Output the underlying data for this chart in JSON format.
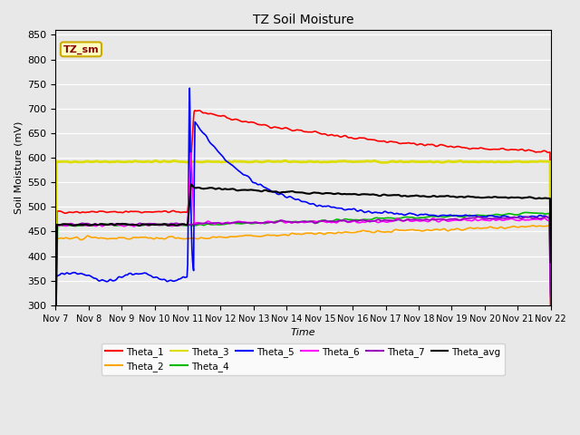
{
  "title": "TZ Soil Moisture",
  "xlabel": "Time",
  "ylabel": "Soil Moisture (mV)",
  "ylim": [
    300,
    860
  ],
  "yticks": [
    300,
    350,
    400,
    450,
    500,
    550,
    600,
    650,
    700,
    750,
    800,
    850
  ],
  "x_tick_labels": [
    "Nov 7",
    "Nov 8",
    "Nov 9",
    "Nov 10",
    "Nov 11",
    "Nov 12",
    "Nov 13",
    "Nov 14",
    "Nov 15",
    "Nov 16",
    "Nov 17",
    "Nov 18",
    "Nov 19",
    "Nov 20",
    "Nov 21",
    "Nov 22"
  ],
  "annotation_text": "TZ_sm",
  "annotation_color": "#8B0000",
  "annotation_bg": "#FFFFC0",
  "annotation_border": "#CCAA00",
  "plot_bg": "#E8E8E8",
  "grid_color": "#FFFFFF",
  "series": {
    "Theta_1": {
      "color": "#FF0000",
      "linewidth": 1.2
    },
    "Theta_2": {
      "color": "#FFA500",
      "linewidth": 1.2
    },
    "Theta_3": {
      "color": "#DDDD00",
      "linewidth": 2.0
    },
    "Theta_4": {
      "color": "#00BB00",
      "linewidth": 1.2
    },
    "Theta_5": {
      "color": "#0000FF",
      "linewidth": 1.2
    },
    "Theta_6": {
      "color": "#FF00FF",
      "linewidth": 1.2
    },
    "Theta_7": {
      "color": "#9900BB",
      "linewidth": 1.2
    },
    "Theta_avg": {
      "color": "#000000",
      "linewidth": 1.5
    }
  },
  "legend_order": [
    "Theta_1",
    "Theta_2",
    "Theta_3",
    "Theta_4",
    "Theta_5",
    "Theta_6",
    "Theta_7",
    "Theta_avg"
  ]
}
